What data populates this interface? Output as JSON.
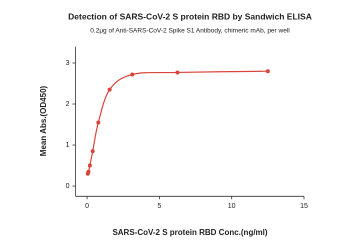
{
  "chart_data": {
    "type": "scatter",
    "title": "Detection of SARS-CoV-2 S protein RBD by Sandwich ELISA",
    "subtitle": "0.2μg of Anti-SARS-CoV-2 Spike S1 Antibody, chimeric mAb,  per well",
    "x_label": "SARS-CoV-2 S protein RBD Conc.(ng/ml)",
    "y_label": "Mean Abs.(OD450)",
    "xlim": [
      -0.8,
      15
    ],
    "xticks": [
      0,
      5,
      10,
      15
    ],
    "ylim": [
      -0.25,
      3.4
    ],
    "yticks": [
      0,
      1,
      2,
      3
    ],
    "series": [
      {
        "color": "#d9453a",
        "x": [
          0.049,
          0.098,
          0.195,
          0.39,
          0.78,
          1.56,
          3.125,
          6.25,
          12.5
        ],
        "values": [
          0.3,
          0.35,
          0.5,
          0.85,
          1.55,
          2.35,
          2.72,
          2.77,
          2.8
        ]
      }
    ]
  }
}
